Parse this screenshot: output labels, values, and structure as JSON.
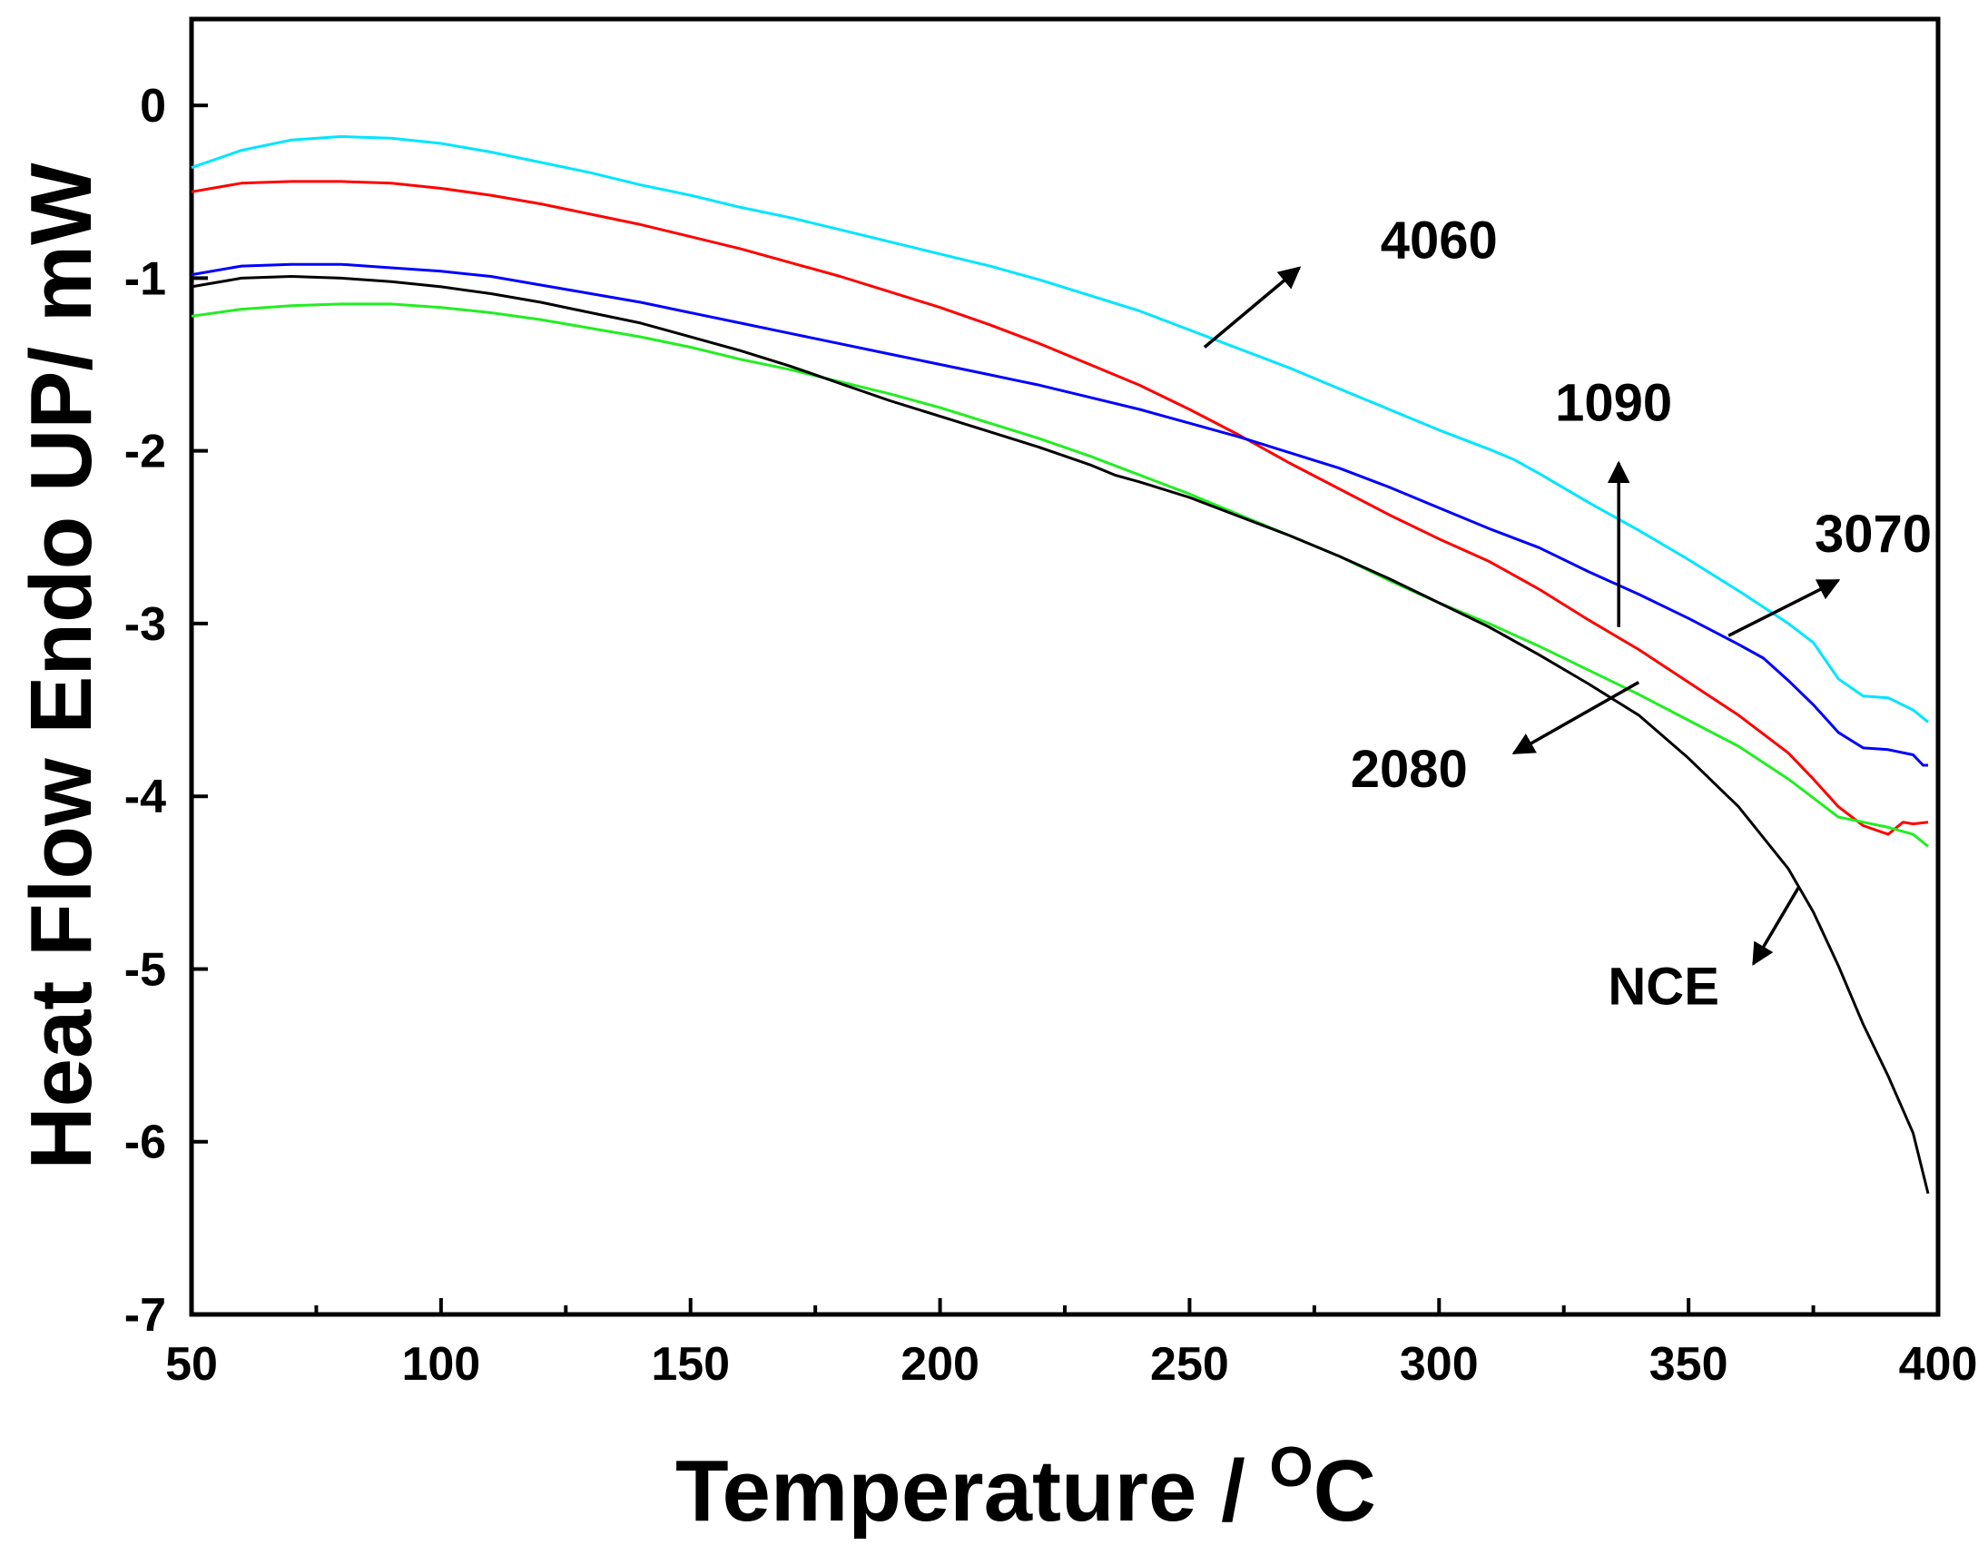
{
  "chart_data": {
    "type": "line",
    "title": "",
    "xlabel": "Temperature / ",
    "xlabel_superscript": "O",
    "xlabel_suffix": "C",
    "ylabel": "Heat Flow Endo UP/ mW",
    "xlim": [
      50,
      400
    ],
    "ylim": [
      -7,
      0.5
    ],
    "xticks": [
      50,
      100,
      150,
      200,
      250,
      300,
      350,
      400
    ],
    "xtick_labels": [
      "50",
      "100",
      "150",
      "200",
      "250",
      "300",
      "350",
      "400"
    ],
    "yticks": [
      0,
      -1,
      -2,
      -3,
      -4,
      -5,
      -6,
      -7
    ],
    "ytick_labels": [
      "0",
      "-1",
      "-2",
      "-3",
      "-4",
      "-5",
      "-6",
      "-7"
    ],
    "grid": false,
    "series": [
      {
        "name": "4060",
        "color": "#00e5ff",
        "x": [
          50,
          60,
          70,
          80,
          90,
          100,
          110,
          120,
          130,
          140,
          150,
          160,
          170,
          180,
          190,
          200,
          210,
          220,
          230,
          240,
          250,
          260,
          270,
          280,
          290,
          300,
          310,
          315,
          320,
          330,
          340,
          350,
          360,
          370,
          375,
          380,
          385,
          390,
          395,
          398
        ],
        "values": [
          -0.36,
          -0.26,
          -0.2,
          -0.18,
          -0.19,
          -0.22,
          -0.27,
          -0.33,
          -0.39,
          -0.46,
          -0.52,
          -0.59,
          -0.65,
          -0.72,
          -0.79,
          -0.86,
          -0.93,
          -1.01,
          -1.1,
          -1.19,
          -1.3,
          -1.41,
          -1.52,
          -1.64,
          -1.76,
          -1.88,
          -1.99,
          -2.05,
          -2.13,
          -2.3,
          -2.46,
          -2.63,
          -2.81,
          -3.0,
          -3.11,
          -3.32,
          -3.42,
          -3.43,
          -3.5,
          -3.57
        ]
      },
      {
        "name": "1090",
        "color": "#ff0000",
        "x": [
          50,
          60,
          70,
          80,
          90,
          100,
          110,
          120,
          130,
          140,
          150,
          160,
          170,
          180,
          190,
          200,
          210,
          220,
          230,
          240,
          250,
          260,
          270,
          280,
          290,
          300,
          310,
          320,
          330,
          340,
          350,
          360,
          370,
          375,
          380,
          385,
          390,
          393,
          395,
          398
        ],
        "values": [
          -0.5,
          -0.45,
          -0.44,
          -0.44,
          -0.45,
          -0.48,
          -0.52,
          -0.57,
          -0.63,
          -0.69,
          -0.76,
          -0.83,
          -0.91,
          -0.99,
          -1.08,
          -1.17,
          -1.27,
          -1.38,
          -1.5,
          -1.62,
          -1.76,
          -1.91,
          -2.07,
          -2.22,
          -2.37,
          -2.51,
          -2.64,
          -2.8,
          -2.98,
          -3.15,
          -3.34,
          -3.53,
          -3.75,
          -3.9,
          -4.06,
          -4.17,
          -4.22,
          -4.15,
          -4.16,
          -4.15
        ]
      },
      {
        "name": "3070",
        "color": "#0000ff",
        "x": [
          50,
          60,
          70,
          80,
          90,
          100,
          110,
          120,
          130,
          140,
          150,
          160,
          170,
          180,
          190,
          200,
          210,
          215,
          220,
          230,
          240,
          250,
          260,
          270,
          280,
          290,
          300,
          310,
          320,
          330,
          340,
          350,
          360,
          365,
          370,
          375,
          380,
          385,
          390,
          395,
          397,
          398
        ],
        "values": [
          -0.98,
          -0.93,
          -0.92,
          -0.92,
          -0.94,
          -0.96,
          -0.99,
          -1.04,
          -1.09,
          -1.14,
          -1.2,
          -1.26,
          -1.32,
          -1.38,
          -1.44,
          -1.5,
          -1.56,
          -1.59,
          -1.62,
          -1.69,
          -1.76,
          -1.84,
          -1.92,
          -2.01,
          -2.1,
          -2.21,
          -2.33,
          -2.45,
          -2.56,
          -2.7,
          -2.83,
          -2.97,
          -3.12,
          -3.2,
          -3.33,
          -3.47,
          -3.63,
          -3.72,
          -3.73,
          -3.76,
          -3.82,
          -3.82
        ]
      },
      {
        "name": "2080",
        "color": "#22ee22",
        "x": [
          50,
          60,
          70,
          80,
          90,
          100,
          110,
          120,
          130,
          140,
          150,
          160,
          170,
          180,
          190,
          200,
          210,
          220,
          230,
          240,
          250,
          260,
          270,
          280,
          290,
          300,
          310,
          320,
          330,
          340,
          350,
          360,
          370,
          375,
          380,
          385,
          390,
          395,
          398
        ],
        "values": [
          -1.22,
          -1.18,
          -1.16,
          -1.15,
          -1.15,
          -1.17,
          -1.2,
          -1.24,
          -1.29,
          -1.34,
          -1.4,
          -1.47,
          -1.53,
          -1.6,
          -1.67,
          -1.75,
          -1.84,
          -1.93,
          -2.03,
          -2.14,
          -2.25,
          -2.37,
          -2.49,
          -2.61,
          -2.75,
          -2.88,
          -3.0,
          -3.13,
          -3.27,
          -3.41,
          -3.56,
          -3.71,
          -3.9,
          -4.01,
          -4.12,
          -4.15,
          -4.18,
          -4.22,
          -4.29
        ]
      },
      {
        "name": "NCE",
        "color": "#000000",
        "x": [
          50,
          60,
          70,
          80,
          90,
          100,
          110,
          120,
          130,
          140,
          150,
          160,
          170,
          180,
          190,
          200,
          210,
          220,
          230,
          235,
          240,
          250,
          260,
          270,
          280,
          290,
          300,
          310,
          320,
          330,
          340,
          350,
          360,
          370,
          375,
          380,
          385,
          390,
          395,
          398
        ],
        "values": [
          -1.05,
          -1.0,
          -0.99,
          -1.0,
          -1.02,
          -1.05,
          -1.09,
          -1.14,
          -1.2,
          -1.26,
          -1.34,
          -1.42,
          -1.51,
          -1.61,
          -1.71,
          -1.8,
          -1.89,
          -1.98,
          -2.08,
          -2.14,
          -2.18,
          -2.27,
          -2.38,
          -2.49,
          -2.61,
          -2.74,
          -2.88,
          -3.02,
          -3.18,
          -3.35,
          -3.53,
          -3.78,
          -4.06,
          -4.42,
          -4.67,
          -4.98,
          -5.32,
          -5.62,
          -5.95,
          -6.3
        ]
      }
    ],
    "annotations": [
      {
        "label": "4060",
        "series": "4060",
        "from": [
          253,
          -1.4
        ],
        "to": [
          272,
          -0.94
        ],
        "text_at": [
          300,
          -0.78
        ]
      },
      {
        "label": "1090",
        "series": "1090",
        "from": [
          336,
          -3.02
        ],
        "to": [
          336,
          -2.07
        ],
        "text_at": [
          335,
          -1.72
        ]
      },
      {
        "label": "3070",
        "series": "3070",
        "from": [
          358,
          -3.07
        ],
        "to": [
          380,
          -2.75
        ],
        "text_at": [
          387,
          -2.48
        ]
      },
      {
        "label": "2080",
        "series": "2080",
        "from": [
          340,
          -3.34
        ],
        "to": [
          315,
          -3.75
        ],
        "text_at": [
          294,
          -3.84
        ]
      },
      {
        "label": "NCE",
        "series": "NCE",
        "from": [
          372,
          -4.53
        ],
        "to": [
          363,
          -4.97
        ],
        "text_at": [
          345,
          -5.1
        ]
      }
    ]
  }
}
